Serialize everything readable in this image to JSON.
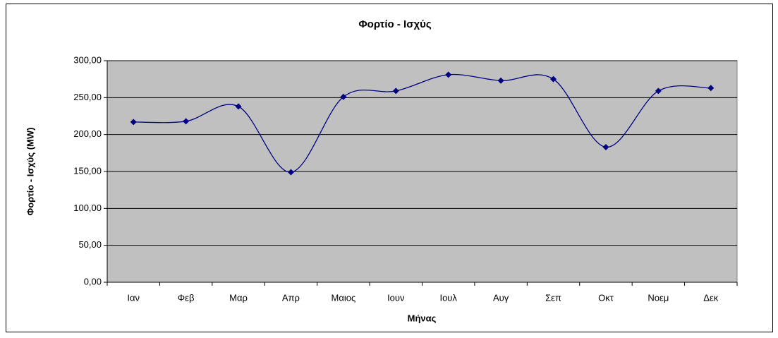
{
  "chart_data": {
    "type": "line",
    "title": "Φορτίο - Ισχύς",
    "x_label": "Μήνας",
    "y_label": "Φορτίο - Ισχύς (MW)",
    "categories": [
      "Ιαν",
      "Φεβ",
      "Μαρ",
      "Απρ",
      "Μαιος",
      "Ιουν",
      "Ιουλ",
      "Αυγ",
      "Σεπ",
      "Οκτ",
      "Νοεμ",
      "Δεκ"
    ],
    "values": [
      217,
      218,
      238,
      149,
      251,
      259,
      281,
      273,
      275,
      183,
      259,
      263
    ],
    "color": "#000080",
    "ylim": [
      0,
      300
    ],
    "yticks": [
      {
        "value": 0,
        "label": "0,00"
      },
      {
        "value": 50,
        "label": "50,00"
      },
      {
        "value": 100,
        "label": "100,00"
      },
      {
        "value": 150,
        "label": "150,00"
      },
      {
        "value": 200,
        "label": "200,00"
      },
      {
        "value": 250,
        "label": "250,00"
      },
      {
        "value": 300,
        "label": "300,00"
      }
    ],
    "grid": true,
    "smooth": true
  }
}
